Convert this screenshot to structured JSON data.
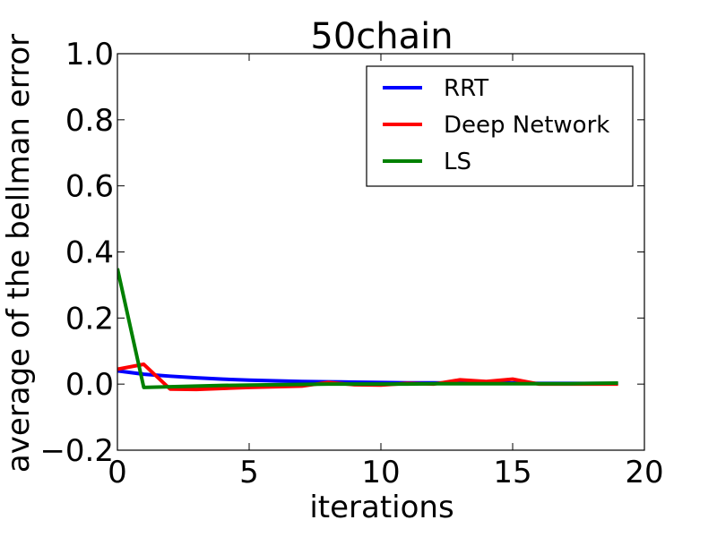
{
  "chart_data": {
    "type": "line",
    "title": "50chain",
    "xlabel": "iterations",
    "ylabel": "average of the bellman error",
    "xlim": [
      0,
      20
    ],
    "ylim": [
      -0.2,
      1.0
    ],
    "xticks": [
      0,
      5,
      10,
      15,
      20
    ],
    "xtick_labels": [
      "0",
      "5",
      "10",
      "15",
      "20"
    ],
    "yticks": [
      -0.2,
      0.0,
      0.2,
      0.4,
      0.6,
      0.8,
      1.0
    ],
    "ytick_labels": [
      "−0.2",
      "0.0",
      "0.2",
      "0.4",
      "0.6",
      "0.8",
      "1.0"
    ],
    "grid": false,
    "legend_position": "top-right",
    "series": [
      {
        "name": "RRT",
        "color": "#0000ff",
        "x": [
          0,
          1,
          2,
          3,
          4,
          5,
          6,
          7,
          8,
          9,
          10,
          11,
          12,
          13,
          14,
          15,
          16,
          17,
          18,
          19
        ],
        "y": [
          0.04,
          0.03,
          0.024,
          0.019,
          0.015,
          0.012,
          0.01,
          0.008,
          0.007,
          0.006,
          0.005,
          0.004,
          0.004,
          0.003,
          0.003,
          0.003,
          0.002,
          0.002,
          0.002,
          0.002
        ]
      },
      {
        "name": "Deep Network",
        "color": "#ff0000",
        "x": [
          0,
          1,
          2,
          3,
          4,
          5,
          6,
          7,
          8,
          9,
          10,
          11,
          12,
          13,
          14,
          15,
          16,
          17,
          18,
          19
        ],
        "y": [
          0.045,
          0.06,
          -0.015,
          -0.016,
          -0.013,
          -0.01,
          -0.008,
          -0.006,
          0.005,
          -0.002,
          -0.003,
          0.002,
          0.0,
          0.013,
          0.008,
          0.015,
          0.0,
          0.0,
          0.0,
          0.0
        ]
      },
      {
        "name": "LS",
        "color": "#008000",
        "x": [
          0,
          1,
          2,
          3,
          4,
          5,
          6,
          7,
          8,
          9,
          10,
          11,
          12,
          13,
          14,
          15,
          16,
          17,
          18,
          19
        ],
        "y": [
          0.35,
          -0.01,
          -0.008,
          -0.006,
          -0.004,
          -0.003,
          -0.002,
          -0.001,
          0.0,
          0.0,
          0.0,
          0.0,
          0.001,
          0.001,
          0.001,
          0.001,
          0.001,
          0.001,
          0.002,
          0.003
        ]
      }
    ]
  }
}
